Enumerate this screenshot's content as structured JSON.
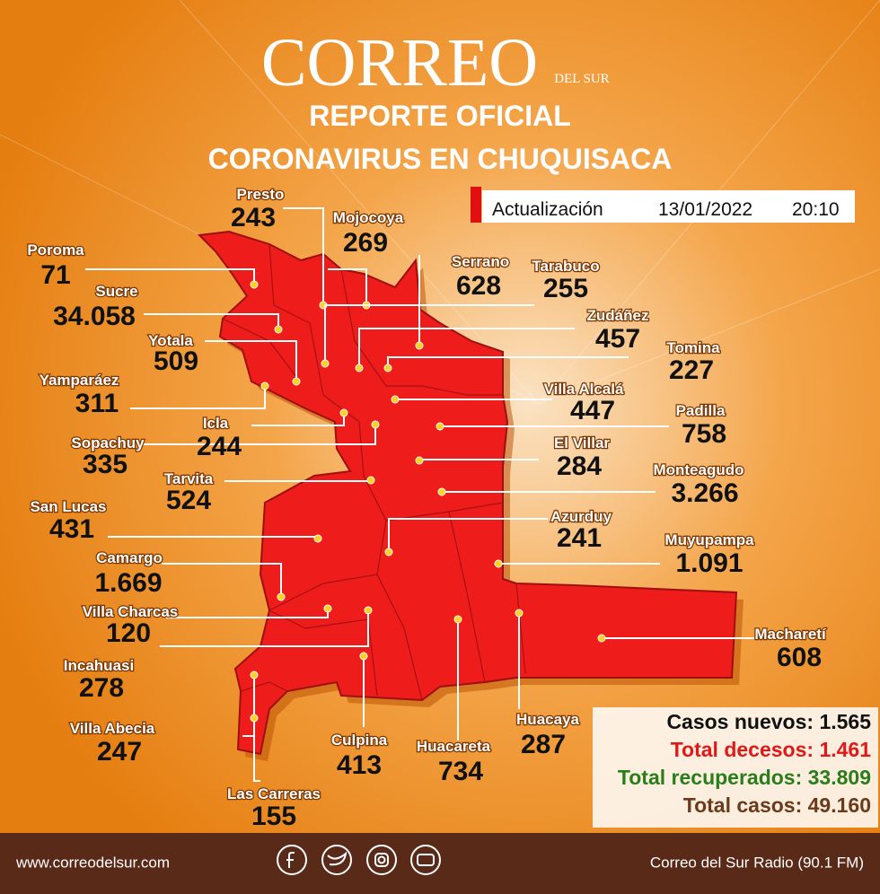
{
  "header": {
    "logo": "CORREO",
    "logo_sub": "DEL SUR",
    "title_lines": [
      "REPORTE OFICIAL",
      "CORONAVIRUS EN CHUQUISACA"
    ]
  },
  "update": {
    "label": "Actualización",
    "date": "13/01/2022",
    "time": "20:10"
  },
  "municipalities": [
    {
      "name": "Presto",
      "count": "243"
    },
    {
      "name": "Mojocoya",
      "count": "269"
    },
    {
      "name": "Poroma",
      "count": "71"
    },
    {
      "name": "Sucre",
      "count": "34.058"
    },
    {
      "name": "Serrano",
      "count": "628"
    },
    {
      "name": "Tarabuco",
      "count": "255"
    },
    {
      "name": "Zudáñez",
      "count": "457"
    },
    {
      "name": "Yotala",
      "count": "509"
    },
    {
      "name": "Tomina",
      "count": "227"
    },
    {
      "name": "Yamparáez",
      "count": "311"
    },
    {
      "name": "Villa Alcalá",
      "count": "447"
    },
    {
      "name": "Padilla",
      "count": "758"
    },
    {
      "name": "Icla",
      "count": "244"
    },
    {
      "name": "Sopachuy",
      "count": "335"
    },
    {
      "name": "El Villar",
      "count": "284"
    },
    {
      "name": "Tarvita",
      "count": "524"
    },
    {
      "name": "Monteagudo",
      "count": "3.266"
    },
    {
      "name": "San Lucas",
      "count": "431"
    },
    {
      "name": "Azurduy",
      "count": "241"
    },
    {
      "name": "Camargo",
      "count": "1.669"
    },
    {
      "name": "Muyupampa",
      "count": "1.091"
    },
    {
      "name": "Villa Charcas",
      "count": "120"
    },
    {
      "name": "Macharetí",
      "count": "608"
    },
    {
      "name": "Incahuasi",
      "count": "278"
    },
    {
      "name": "Villa Abecia",
      "count": "247"
    },
    {
      "name": "Huacaya",
      "count": "287"
    },
    {
      "name": "Culpina",
      "count": "413"
    },
    {
      "name": "Huacareta",
      "count": "734"
    },
    {
      "name": "Las Carreras",
      "count": "155"
    }
  ],
  "totals": [
    {
      "label": "Casos nuevos:",
      "value": "1.565"
    },
    {
      "label": "Total decesos:",
      "value": "1.461"
    },
    {
      "label": "Total recuperados:",
      "value": "33.809"
    },
    {
      "label": "Total casos:",
      "value": "49.160"
    }
  ],
  "footer": {
    "website": "www.correodelsur.com",
    "radio": "Correo del Sur Radio (90.1 FM)"
  }
}
